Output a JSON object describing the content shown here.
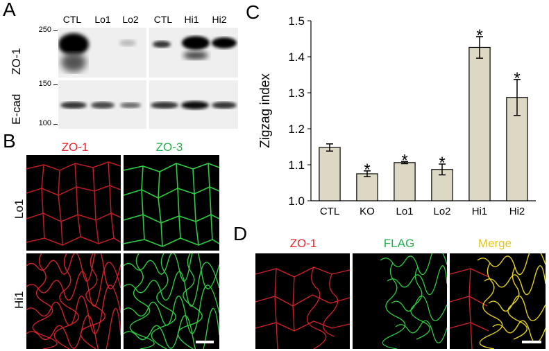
{
  "panels": {
    "A": "A",
    "B": "B",
    "C": "C",
    "D": "D"
  },
  "panel_a": {
    "lanes_left": [
      "CTL",
      "Lo1",
      "Lo2"
    ],
    "lanes_right": [
      "CTL",
      "Hi1",
      "Hi2"
    ],
    "rows": [
      "ZO-1",
      "E-cad"
    ],
    "markers": [
      "250",
      "150",
      "100"
    ]
  },
  "panel_b": {
    "stains": [
      "ZO-1",
      "ZO-3"
    ],
    "rows": [
      "Lo1",
      "Hi1"
    ],
    "colors": {
      "zo1": "#e8212a",
      "zo3": "#22b14c"
    }
  },
  "panel_d": {
    "stains": [
      "ZO-1",
      "FLAG",
      "Merge"
    ],
    "colors": {
      "zo1": "#e8212a",
      "flag": "#22b14c",
      "merge": "#e6c619"
    }
  },
  "chart_data": {
    "type": "bar",
    "categories": [
      "CTL",
      "KO",
      "Lo1",
      "Lo2",
      "Hi1",
      "Hi2"
    ],
    "values": [
      1.148,
      1.075,
      1.106,
      1.087,
      1.426,
      1.287
    ],
    "errors": [
      0.01,
      0.008,
      0.003,
      0.015,
      0.03,
      0.05
    ],
    "significant": [
      false,
      true,
      true,
      true,
      true,
      true
    ],
    "sig_marker": "*",
    "ylabel": "Zigzag index",
    "xlabel": "",
    "title": "",
    "ylim": [
      1.0,
      1.5
    ],
    "yticks": [
      "1.0",
      "1.1",
      "1.2",
      "1.3",
      "1.4",
      "1.5"
    ],
    "bar_color": "#ddd8c4",
    "grid": false
  }
}
